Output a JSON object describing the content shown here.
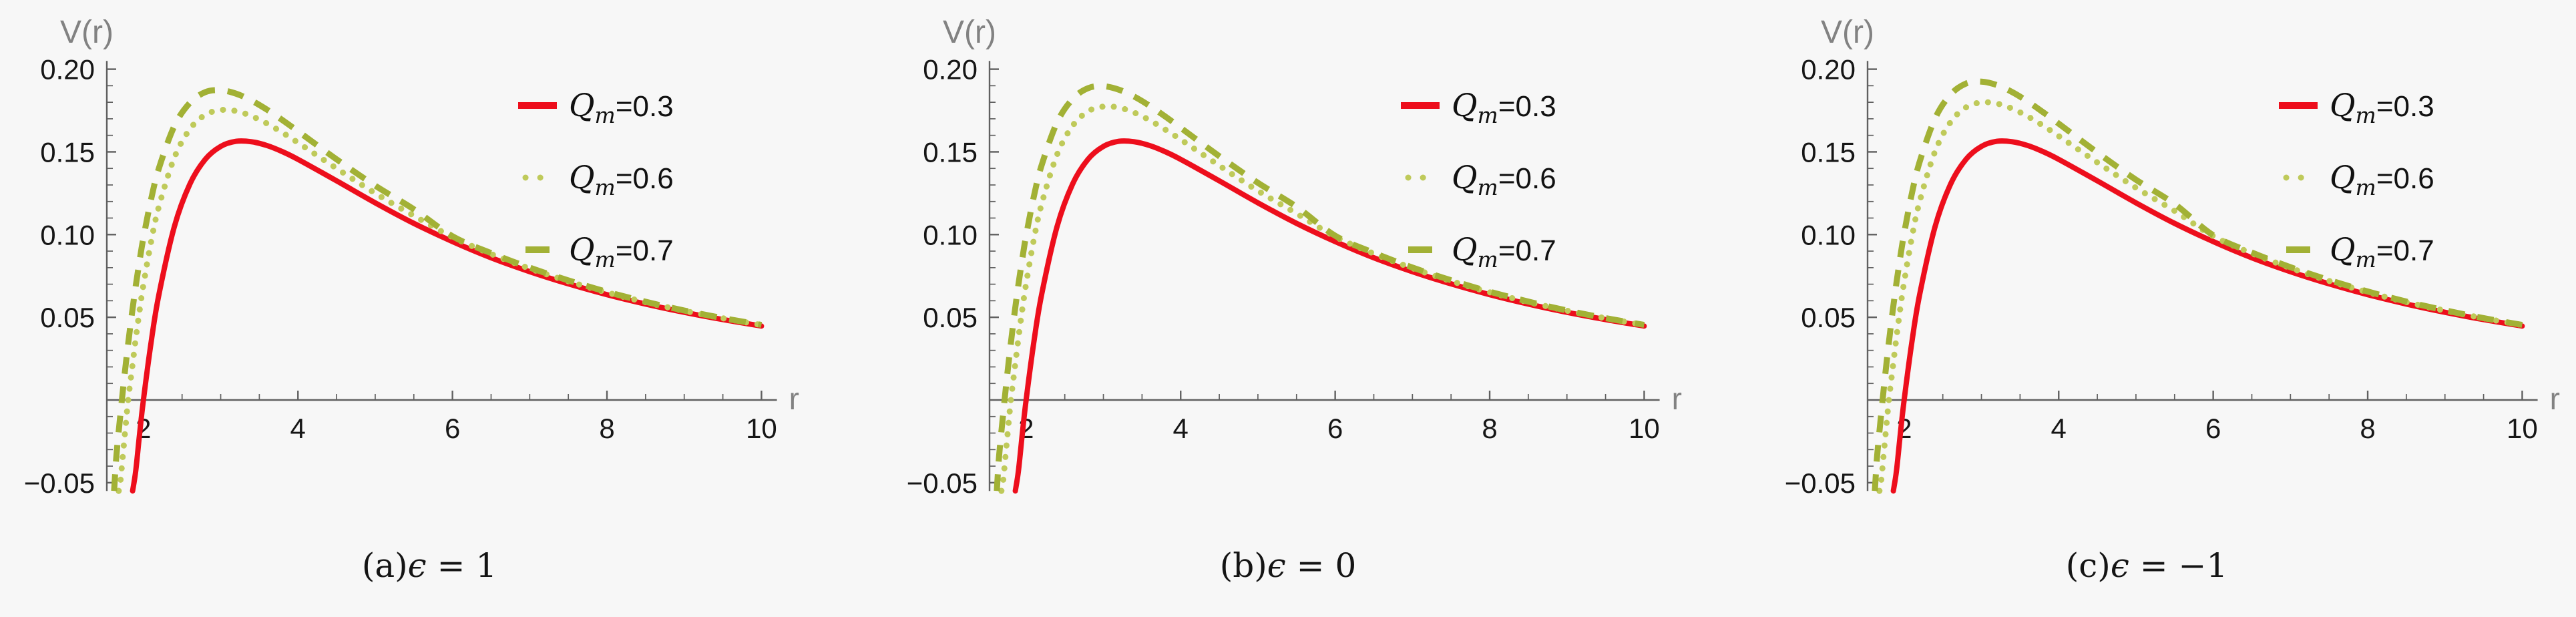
{
  "figure": {
    "background": "#f7f7f7",
    "axis_color": "#606060",
    "tick_label_color": "#161616",
    "axis_label_color": "#828282",
    "legend_text_color": "#111111",
    "caption_color": "#141414"
  },
  "chart_data": [
    {
      "type": "line",
      "panel": "a",
      "caption_full": "(a)ϵ = 1",
      "caption_prefix": "(a)",
      "caption_symbol": "ϵ",
      "caption_value": " = 1",
      "xlabel": "r",
      "ylabel": "V(r)",
      "xlim": [
        1.5,
        10.2
      ],
      "ylim": [
        -0.055,
        0.205
      ],
      "x_ticks": [
        2,
        4,
        6,
        8,
        10
      ],
      "x_tick_labels": [
        "2",
        "4",
        "6",
        "8",
        "10"
      ],
      "y_ticks": [
        -0.05,
        0.05,
        0.1,
        0.15,
        0.2
      ],
      "y_tick_labels": [
        "−0.05",
        "0.05",
        "0.10",
        "0.15",
        "0.20"
      ],
      "x_minor_step": 0.5,
      "y_minor_step": 0.01,
      "grid": false,
      "legend_position": "upper right",
      "series": [
        {
          "name": "Qm=0.3",
          "legend": {
            "base": "Q",
            "sub": "m",
            "rest": "=0.3"
          },
          "color": "#ed0e1c",
          "style": "solid",
          "x": [
            1.86,
            1.9,
            1.95,
            2.0,
            2.1,
            2.2,
            2.4,
            2.6,
            2.8,
            3.0,
            3.2,
            3.4,
            3.6,
            3.8,
            4.0,
            4.5,
            5.0,
            5.5,
            6.0,
            6.5,
            7.0,
            7.5,
            8.0,
            8.5,
            9.0,
            9.5,
            10.0
          ],
          "y": [
            -0.055,
            -0.0428,
            -0.0204,
            0.0,
            0.0351,
            0.0637,
            0.1048,
            0.1305,
            0.1455,
            0.1533,
            0.1564,
            0.1561,
            0.1538,
            0.1501,
            0.1455,
            0.1325,
            0.1192,
            0.1068,
            0.0958,
            0.086,
            0.0776,
            0.0702,
            0.0637,
            0.058,
            0.053,
            0.0486,
            0.0447
          ]
        },
        {
          "name": "Qm=0.6",
          "legend": {
            "base": "Q",
            "sub": "m",
            "rest": "=0.6"
          },
          "color": "#bfca5a",
          "style": "dotted",
          "x": [
            1.68,
            1.7,
            1.75,
            1.8,
            1.85,
            1.9,
            1.95,
            2.0,
            2.1,
            2.2,
            2.4,
            2.6,
            2.8,
            3.0,
            3.2,
            3.4,
            3.6,
            3.8,
            4.0,
            4.5,
            5.0,
            5.5,
            6.0,
            6.5,
            7.0,
            7.5,
            8.0,
            8.5,
            9.0,
            9.5,
            10.0
          ],
          "y": [
            -0.055,
            -0.0502,
            -0.0254,
            -0.001,
            0.0181,
            0.037,
            0.0542,
            0.0695,
            0.0959,
            0.117,
            0.1465,
            0.1637,
            0.1724,
            0.1753,
            0.1747,
            0.1716,
            0.1671,
            0.1616,
            0.1556,
            0.14,
            0.125,
            0.1114,
            0.0985,
            0.0883,
            0.0795,
            0.0718,
            0.065,
            0.0591,
            0.0539,
            0.0494,
            0.0453
          ]
        },
        {
          "name": "Qm=0.7",
          "legend": {
            "base": "Q",
            "sub": "m",
            "rest": "=0.7"
          },
          "color": "#a2b135",
          "style": "dashed",
          "x": [
            1.62,
            1.65,
            1.7,
            1.75,
            1.8,
            1.85,
            1.9,
            1.95,
            2.0,
            2.1,
            2.2,
            2.4,
            2.6,
            2.8,
            3.0,
            3.2,
            3.4,
            3.6,
            3.8,
            4.0,
            4.5,
            5.0,
            5.5,
            6.0,
            6.5,
            7.0,
            7.5,
            8.0,
            8.5,
            9.0,
            9.5,
            10.0
          ],
          "y": [
            -0.055,
            -0.0339,
            -0.0097,
            0.0128,
            0.0332,
            0.0519,
            0.069,
            0.0843,
            0.0981,
            0.1215,
            0.1401,
            0.1656,
            0.1796,
            0.1861,
            0.1873,
            0.1852,
            0.181,
            0.1755,
            0.1692,
            0.1625,
            0.1455,
            0.1296,
            0.1153,
            0.099,
            0.0888,
            0.08,
            0.0723,
            0.0654,
            0.0594,
            0.0541,
            0.0495,
            0.0454
          ]
        }
      ]
    },
    {
      "type": "line",
      "panel": "b",
      "caption_full": "(b)ϵ = 0",
      "caption_prefix": "(b)",
      "caption_symbol": "ϵ",
      "caption_value": " = 0",
      "xlabel": "r",
      "ylabel": "V(r)",
      "xlim": [
        1.5,
        10.2
      ],
      "ylim": [
        -0.055,
        0.205
      ],
      "x_ticks": [
        2,
        4,
        6,
        8,
        10
      ],
      "x_tick_labels": [
        "2",
        "4",
        "6",
        "8",
        "10"
      ],
      "y_ticks": [
        -0.05,
        0.05,
        0.1,
        0.15,
        0.2
      ],
      "y_tick_labels": [
        "−0.05",
        "0.05",
        "0.10",
        "0.15",
        "0.20"
      ],
      "x_minor_step": 0.5,
      "y_minor_step": 0.01,
      "grid": false,
      "legend_position": "upper right",
      "series": [
        {
          "name": "Qm=0.3",
          "legend": {
            "base": "Q",
            "sub": "m",
            "rest": "=0.3"
          },
          "color": "#ed0e1c",
          "style": "solid",
          "x": [
            1.86,
            1.9,
            1.95,
            2.0,
            2.1,
            2.2,
            2.4,
            2.6,
            2.8,
            3.0,
            3.2,
            3.4,
            3.6,
            3.8,
            4.0,
            4.5,
            5.0,
            5.5,
            6.0,
            6.5,
            7.0,
            7.5,
            8.0,
            8.5,
            9.0,
            9.5,
            10.0
          ],
          "y": [
            -0.055,
            -0.0428,
            -0.0204,
            0.0,
            0.0351,
            0.0637,
            0.1048,
            0.1305,
            0.1455,
            0.1533,
            0.1564,
            0.1561,
            0.1538,
            0.1501,
            0.1455,
            0.1325,
            0.1192,
            0.1068,
            0.0958,
            0.086,
            0.0776,
            0.0702,
            0.0637,
            0.058,
            0.053,
            0.0486,
            0.0447
          ]
        },
        {
          "name": "Qm=0.6",
          "legend": {
            "base": "Q",
            "sub": "m",
            "rest": "=0.6"
          },
          "color": "#bfca5a",
          "style": "dotted",
          "x": [
            1.68,
            1.7,
            1.75,
            1.8,
            1.85,
            1.9,
            1.95,
            2.0,
            2.1,
            2.2,
            2.4,
            2.6,
            2.8,
            3.0,
            3.2,
            3.4,
            3.6,
            3.8,
            4.0,
            4.5,
            5.0,
            5.5,
            6.0,
            6.5,
            7.0,
            7.5,
            8.0,
            8.5,
            9.0,
            9.5,
            10.0
          ],
          "y": [
            -0.055,
            -0.0502,
            -0.0254,
            -0.001,
            0.0183,
            0.0374,
            0.0549,
            0.0703,
            0.0971,
            0.1184,
            0.1483,
            0.1657,
            0.1745,
            0.1774,
            0.1768,
            0.1737,
            0.1691,
            0.1635,
            0.1575,
            0.1417,
            0.1265,
            0.1127,
            0.0988,
            0.0885,
            0.0797,
            0.0719,
            0.0651,
            0.0592,
            0.054,
            0.0494,
            0.0453
          ]
        },
        {
          "name": "Qm=0.7",
          "legend": {
            "base": "Q",
            "sub": "m",
            "rest": "=0.7"
          },
          "color": "#a2b135",
          "style": "dashed",
          "x": [
            1.62,
            1.65,
            1.7,
            1.75,
            1.8,
            1.85,
            1.9,
            1.95,
            2.0,
            2.1,
            2.2,
            2.4,
            2.6,
            2.8,
            3.0,
            3.2,
            3.4,
            3.6,
            3.8,
            4.0,
            4.5,
            5.0,
            5.5,
            6.0,
            6.5,
            7.0,
            7.5,
            8.0,
            8.5,
            9.0,
            9.5,
            10.0
          ],
          "y": [
            -0.055,
            -0.0339,
            -0.0097,
            0.013,
            0.0336,
            0.0526,
            0.0699,
            0.0854,
            0.0994,
            0.1231,
            0.1419,
            0.1678,
            0.1819,
            0.1885,
            0.1897,
            0.1876,
            0.1834,
            0.1778,
            0.1714,
            0.1646,
            0.1474,
            0.1313,
            0.1168,
            0.0993,
            0.089,
            0.0801,
            0.0724,
            0.0655,
            0.0595,
            0.0541,
            0.0495,
            0.0454
          ]
        }
      ]
    },
    {
      "type": "line",
      "panel": "c",
      "caption_full": "(c)ϵ = −1",
      "caption_prefix": "(c)",
      "caption_symbol": "ϵ",
      "caption_value": " = −1",
      "xlabel": "r",
      "ylabel": "V(r)",
      "xlim": [
        1.5,
        10.2
      ],
      "ylim": [
        -0.055,
        0.205
      ],
      "x_ticks": [
        2,
        4,
        6,
        8,
        10
      ],
      "x_tick_labels": [
        "2",
        "4",
        "6",
        "8",
        "10"
      ],
      "y_ticks": [
        -0.05,
        0.05,
        0.1,
        0.15,
        0.2
      ],
      "y_tick_labels": [
        "−0.05",
        "0.05",
        "0.10",
        "0.15",
        "0.20"
      ],
      "x_minor_step": 0.5,
      "y_minor_step": 0.01,
      "grid": false,
      "legend_position": "upper right",
      "series": [
        {
          "name": "Qm=0.3",
          "legend": {
            "base": "Q",
            "sub": "m",
            "rest": "=0.3"
          },
          "color": "#ed0e1c",
          "style": "solid",
          "x": [
            1.86,
            1.9,
            1.95,
            2.0,
            2.1,
            2.2,
            2.4,
            2.6,
            2.8,
            3.0,
            3.2,
            3.4,
            3.6,
            3.8,
            4.0,
            4.5,
            5.0,
            5.5,
            6.0,
            6.5,
            7.0,
            7.5,
            8.0,
            8.5,
            9.0,
            9.5,
            10.0
          ],
          "y": [
            -0.055,
            -0.0428,
            -0.0204,
            0.0,
            0.0351,
            0.0637,
            0.1048,
            0.1305,
            0.1455,
            0.1533,
            0.1564,
            0.1561,
            0.1538,
            0.1501,
            0.1455,
            0.1325,
            0.1192,
            0.1068,
            0.0958,
            0.086,
            0.0776,
            0.0702,
            0.0637,
            0.058,
            0.053,
            0.0486,
            0.0447
          ]
        },
        {
          "name": "Qm=0.6",
          "legend": {
            "base": "Q",
            "sub": "m",
            "rest": "=0.6"
          },
          "color": "#bfca5a",
          "style": "dotted",
          "x": [
            1.68,
            1.7,
            1.75,
            1.8,
            1.85,
            1.9,
            1.95,
            2.0,
            2.1,
            2.2,
            2.4,
            2.6,
            2.8,
            3.0,
            3.2,
            3.4,
            3.6,
            3.8,
            4.0,
            4.5,
            5.0,
            5.5,
            6.0,
            6.5,
            7.0,
            7.5,
            8.0,
            8.5,
            9.0,
            9.5,
            10.0
          ],
          "y": [
            -0.055,
            -0.0502,
            -0.0254,
            -0.001,
            0.0186,
            0.038,
            0.0556,
            0.0713,
            0.0984,
            0.12,
            0.1503,
            0.168,
            0.1769,
            0.1799,
            0.1792,
            0.1761,
            0.1714,
            0.1658,
            0.1596,
            0.1436,
            0.1283,
            0.1143,
            0.0991,
            0.0887,
            0.0798,
            0.072,
            0.0652,
            0.0592,
            0.054,
            0.0494,
            0.0453
          ]
        },
        {
          "name": "Qm=0.7",
          "legend": {
            "base": "Q",
            "sub": "m",
            "rest": "=0.7"
          },
          "color": "#a2b135",
          "style": "dashed",
          "x": [
            1.62,
            1.65,
            1.7,
            1.75,
            1.8,
            1.85,
            1.9,
            1.95,
            2.0,
            2.1,
            2.2,
            2.4,
            2.6,
            2.8,
            3.0,
            3.2,
            3.4,
            3.6,
            3.8,
            4.0,
            4.5,
            5.0,
            5.5,
            6.0,
            6.5,
            7.0,
            7.5,
            8.0,
            8.5,
            9.0,
            9.5,
            10.0
          ],
          "y": [
            -0.055,
            -0.0339,
            -0.0097,
            0.0132,
            0.0341,
            0.0534,
            0.0709,
            0.0867,
            0.1008,
            0.1249,
            0.144,
            0.1702,
            0.1846,
            0.1913,
            0.1925,
            0.1904,
            0.1861,
            0.1804,
            0.1739,
            0.1671,
            0.1496,
            0.1332,
            0.1185,
            0.0996,
            0.0892,
            0.0803,
            0.0725,
            0.0656,
            0.0595,
            0.0542,
            0.0495,
            0.0454
          ]
        }
      ]
    }
  ]
}
